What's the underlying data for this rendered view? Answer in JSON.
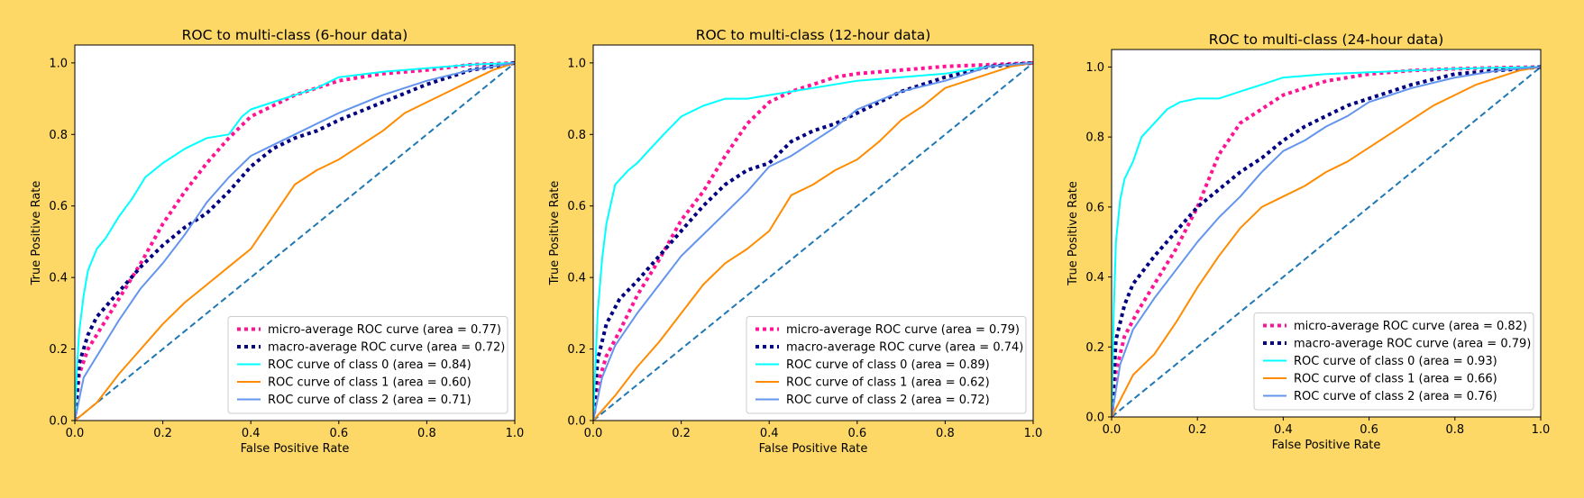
{
  "page": {
    "background": "#fdd867"
  },
  "chart_data": [
    {
      "type": "line",
      "title": "ROC to multi-class (6-hour data)",
      "xlabel": "False Positive Rate",
      "ylabel": "True Positive Rate",
      "xlim": [
        0,
        1
      ],
      "ylim": [
        0,
        1.05
      ],
      "xticks": [
        "0.0",
        "0.2",
        "0.4",
        "0.6",
        "0.8",
        "1.0"
      ],
      "yticks": [
        "0.0",
        "0.2",
        "0.4",
        "0.6",
        "0.8",
        "1.0"
      ],
      "grid": false,
      "legend_position": "lower-right",
      "series": [
        {
          "name": "micro-average ROC curve (area = 0.77)",
          "color": "#ff1493",
          "style": "dotted",
          "x": [
            0,
            0.01,
            0.03,
            0.06,
            0.1,
            0.15,
            0.2,
            0.25,
            0.3,
            0.35,
            0.4,
            0.45,
            0.5,
            0.55,
            0.6,
            0.7,
            0.8,
            0.9,
            1.0
          ],
          "y": [
            0,
            0.13,
            0.2,
            0.26,
            0.34,
            0.44,
            0.55,
            0.64,
            0.72,
            0.79,
            0.85,
            0.88,
            0.91,
            0.93,
            0.95,
            0.97,
            0.98,
            0.995,
            1.0
          ]
        },
        {
          "name": "macro-average ROC curve (area = 0.72)",
          "color": "#000080",
          "style": "dotted",
          "x": [
            0,
            0.01,
            0.03,
            0.05,
            0.1,
            0.15,
            0.2,
            0.25,
            0.3,
            0.35,
            0.4,
            0.45,
            0.5,
            0.55,
            0.6,
            0.7,
            0.8,
            0.9,
            1.0
          ],
          "y": [
            0,
            0.16,
            0.24,
            0.29,
            0.36,
            0.43,
            0.49,
            0.54,
            0.58,
            0.64,
            0.71,
            0.76,
            0.79,
            0.81,
            0.84,
            0.89,
            0.94,
            0.98,
            1.0
          ]
        },
        {
          "name": "ROC curve of class 0 (area = 0.84)",
          "color": "#00ffff",
          "style": "solid",
          "x": [
            0,
            0.005,
            0.01,
            0.02,
            0.03,
            0.05,
            0.07,
            0.1,
            0.13,
            0.16,
            0.2,
            0.25,
            0.3,
            0.35,
            0.38,
            0.4,
            0.45,
            0.5,
            0.55,
            0.6,
            0.7,
            0.8,
            0.9,
            1.0
          ],
          "y": [
            0,
            0.15,
            0.25,
            0.35,
            0.42,
            0.48,
            0.51,
            0.57,
            0.62,
            0.68,
            0.72,
            0.76,
            0.79,
            0.8,
            0.85,
            0.87,
            0.89,
            0.91,
            0.93,
            0.96,
            0.975,
            0.985,
            0.995,
            1.0
          ]
        },
        {
          "name": "ROC curve of class 1 (area = 0.60)",
          "color": "#ff8c00",
          "style": "solid",
          "x": [
            0,
            0.05,
            0.1,
            0.15,
            0.2,
            0.25,
            0.3,
            0.35,
            0.4,
            0.45,
            0.5,
            0.55,
            0.6,
            0.65,
            0.7,
            0.75,
            0.8,
            0.85,
            0.9,
            0.95,
            1.0
          ],
          "y": [
            0,
            0.05,
            0.13,
            0.2,
            0.27,
            0.33,
            0.38,
            0.43,
            0.48,
            0.57,
            0.66,
            0.7,
            0.73,
            0.77,
            0.81,
            0.86,
            0.89,
            0.92,
            0.95,
            0.98,
            1.0
          ]
        },
        {
          "name": "ROC curve of class 2 (area = 0.71)",
          "color": "#6495ed",
          "style": "solid",
          "x": [
            0,
            0.02,
            0.05,
            0.1,
            0.15,
            0.2,
            0.25,
            0.3,
            0.35,
            0.4,
            0.45,
            0.5,
            0.55,
            0.6,
            0.7,
            0.8,
            0.9,
            1.0
          ],
          "y": [
            0,
            0.12,
            0.18,
            0.28,
            0.37,
            0.44,
            0.52,
            0.61,
            0.68,
            0.74,
            0.77,
            0.8,
            0.83,
            0.86,
            0.91,
            0.95,
            0.98,
            1.0
          ]
        },
        {
          "name": "",
          "color": "#1f77b4",
          "style": "dashed",
          "x": [
            0,
            1
          ],
          "y": [
            0,
            1
          ]
        }
      ]
    },
    {
      "type": "line",
      "title": "ROC to multi-class (12-hour data)",
      "xlabel": "False Positive Rate",
      "ylabel": "True Positive Rate",
      "xlim": [
        0,
        1
      ],
      "ylim": [
        0,
        1.05
      ],
      "xticks": [
        "0.0",
        "0.2",
        "0.4",
        "0.6",
        "0.8",
        "1.0"
      ],
      "yticks": [
        "0.0",
        "0.2",
        "0.4",
        "0.6",
        "0.8",
        "1.0"
      ],
      "grid": false,
      "legend_position": "lower-right",
      "series": [
        {
          "name": "micro-average ROC curve (area = 0.79)",
          "color": "#ff1493",
          "style": "dotted",
          "x": [
            0,
            0.01,
            0.03,
            0.06,
            0.1,
            0.15,
            0.2,
            0.25,
            0.3,
            0.35,
            0.4,
            0.45,
            0.5,
            0.55,
            0.6,
            0.7,
            0.8,
            0.9,
            1.0
          ],
          "y": [
            0,
            0.1,
            0.18,
            0.25,
            0.35,
            0.45,
            0.56,
            0.64,
            0.74,
            0.83,
            0.89,
            0.92,
            0.94,
            0.96,
            0.97,
            0.98,
            0.99,
            0.995,
            1.0
          ]
        },
        {
          "name": "macro-average ROC curve (area = 0.74)",
          "color": "#000080",
          "style": "dotted",
          "x": [
            0,
            0.01,
            0.03,
            0.06,
            0.1,
            0.15,
            0.2,
            0.25,
            0.3,
            0.35,
            0.4,
            0.45,
            0.5,
            0.55,
            0.6,
            0.7,
            0.8,
            0.9,
            1.0
          ],
          "y": [
            0,
            0.17,
            0.27,
            0.34,
            0.39,
            0.46,
            0.53,
            0.6,
            0.66,
            0.7,
            0.72,
            0.78,
            0.81,
            0.83,
            0.86,
            0.92,
            0.96,
            0.99,
            1.0
          ]
        },
        {
          "name": "ROC curve of class 0 (area = 0.89)",
          "color": "#00ffff",
          "style": "solid",
          "x": [
            0,
            0.005,
            0.01,
            0.02,
            0.03,
            0.05,
            0.08,
            0.1,
            0.13,
            0.16,
            0.2,
            0.25,
            0.3,
            0.35,
            0.4,
            0.5,
            0.6,
            0.7,
            0.8,
            0.9,
            1.0
          ],
          "y": [
            0,
            0.15,
            0.3,
            0.45,
            0.55,
            0.66,
            0.7,
            0.72,
            0.76,
            0.8,
            0.85,
            0.88,
            0.9,
            0.9,
            0.91,
            0.93,
            0.95,
            0.96,
            0.97,
            0.99,
            1.0
          ]
        },
        {
          "name": "ROC curve of class 1 (area = 0.62)",
          "color": "#ff8c00",
          "style": "solid",
          "x": [
            0,
            0.05,
            0.1,
            0.15,
            0.2,
            0.25,
            0.3,
            0.35,
            0.4,
            0.45,
            0.5,
            0.55,
            0.6,
            0.65,
            0.7,
            0.75,
            0.8,
            0.85,
            0.9,
            0.95,
            1.0
          ],
          "y": [
            0,
            0.07,
            0.15,
            0.22,
            0.3,
            0.38,
            0.44,
            0.48,
            0.53,
            0.63,
            0.66,
            0.7,
            0.73,
            0.78,
            0.84,
            0.88,
            0.93,
            0.95,
            0.97,
            0.99,
            1.0
          ]
        },
        {
          "name": "ROC curve of class 2 (area = 0.72)",
          "color": "#6495ed",
          "style": "solid",
          "x": [
            0,
            0.02,
            0.05,
            0.1,
            0.15,
            0.2,
            0.25,
            0.3,
            0.35,
            0.4,
            0.45,
            0.5,
            0.55,
            0.6,
            0.7,
            0.8,
            0.9,
            1.0
          ],
          "y": [
            0,
            0.12,
            0.21,
            0.3,
            0.38,
            0.46,
            0.52,
            0.58,
            0.64,
            0.71,
            0.74,
            0.78,
            0.82,
            0.87,
            0.92,
            0.95,
            0.99,
            1.0
          ]
        },
        {
          "name": "",
          "color": "#1f77b4",
          "style": "dashed",
          "x": [
            0,
            1
          ],
          "y": [
            0,
            1
          ]
        }
      ]
    },
    {
      "type": "line",
      "title": "ROC to multi-class (24-hour data)",
      "xlabel": "False Positive Rate",
      "ylabel": "True Positive Rate",
      "xlim": [
        0,
        1
      ],
      "ylim": [
        0,
        1.05
      ],
      "xticks": [
        "0.0",
        "0.2",
        "0.4",
        "0.6",
        "0.8",
        "1.0"
      ],
      "yticks": [
        "0.0",
        "0.2",
        "0.4",
        "0.6",
        "0.8",
        "1.0"
      ],
      "grid": false,
      "legend_position": "lower-right",
      "series": [
        {
          "name": "micro-average ROC curve (area = 0.82)",
          "color": "#ff1493",
          "style": "dotted",
          "x": [
            0,
            0.01,
            0.03,
            0.06,
            0.1,
            0.15,
            0.2,
            0.25,
            0.3,
            0.35,
            0.4,
            0.45,
            0.5,
            0.55,
            0.6,
            0.7,
            0.8,
            0.9,
            1.0
          ],
          "y": [
            0,
            0.13,
            0.23,
            0.3,
            0.38,
            0.48,
            0.6,
            0.75,
            0.84,
            0.88,
            0.92,
            0.94,
            0.96,
            0.97,
            0.98,
            0.99,
            0.995,
            0.998,
            1.0
          ]
        },
        {
          "name": "macro-average ROC curve (area = 0.79)",
          "color": "#000080",
          "style": "dotted",
          "x": [
            0,
            0.01,
            0.03,
            0.05,
            0.1,
            0.15,
            0.2,
            0.25,
            0.3,
            0.35,
            0.4,
            0.45,
            0.5,
            0.55,
            0.6,
            0.7,
            0.8,
            0.9,
            1.0
          ],
          "y": [
            0,
            0.22,
            0.32,
            0.38,
            0.46,
            0.53,
            0.6,
            0.65,
            0.7,
            0.74,
            0.79,
            0.83,
            0.86,
            0.89,
            0.91,
            0.95,
            0.98,
            0.99,
            1.0
          ]
        },
        {
          "name": "ROC curve of class 0 (area = 0.93)",
          "color": "#00ffff",
          "style": "solid",
          "x": [
            0,
            0.005,
            0.01,
            0.02,
            0.03,
            0.05,
            0.07,
            0.1,
            0.13,
            0.16,
            0.2,
            0.25,
            0.3,
            0.35,
            0.4,
            0.5,
            0.6,
            0.7,
            0.8,
            0.9,
            1.0
          ],
          "y": [
            0,
            0.3,
            0.5,
            0.62,
            0.68,
            0.73,
            0.8,
            0.84,
            0.88,
            0.9,
            0.91,
            0.91,
            0.93,
            0.95,
            0.97,
            0.98,
            0.985,
            0.99,
            0.995,
            0.998,
            1.0
          ]
        },
        {
          "name": "ROC curve of class 1 (area = 0.66)",
          "color": "#ff8c00",
          "style": "solid",
          "x": [
            0,
            0.05,
            0.1,
            0.15,
            0.2,
            0.25,
            0.3,
            0.35,
            0.4,
            0.45,
            0.5,
            0.55,
            0.6,
            0.65,
            0.7,
            0.75,
            0.8,
            0.85,
            0.9,
            0.95,
            1.0
          ],
          "y": [
            0,
            0.12,
            0.18,
            0.27,
            0.37,
            0.46,
            0.54,
            0.6,
            0.63,
            0.66,
            0.7,
            0.73,
            0.77,
            0.81,
            0.85,
            0.89,
            0.92,
            0.95,
            0.97,
            0.99,
            1.0
          ]
        },
        {
          "name": "ROC curve of class 2 (area = 0.76)",
          "color": "#6495ed",
          "style": "solid",
          "x": [
            0,
            0.02,
            0.05,
            0.1,
            0.15,
            0.2,
            0.25,
            0.3,
            0.35,
            0.4,
            0.45,
            0.5,
            0.55,
            0.6,
            0.7,
            0.8,
            0.9,
            1.0
          ],
          "y": [
            0,
            0.15,
            0.25,
            0.34,
            0.42,
            0.5,
            0.57,
            0.63,
            0.7,
            0.76,
            0.79,
            0.83,
            0.86,
            0.9,
            0.94,
            0.97,
            0.99,
            1.0
          ]
        },
        {
          "name": "",
          "color": "#1f77b4",
          "style": "dashed",
          "x": [
            0,
            1
          ],
          "y": [
            0,
            1
          ]
        }
      ]
    }
  ]
}
